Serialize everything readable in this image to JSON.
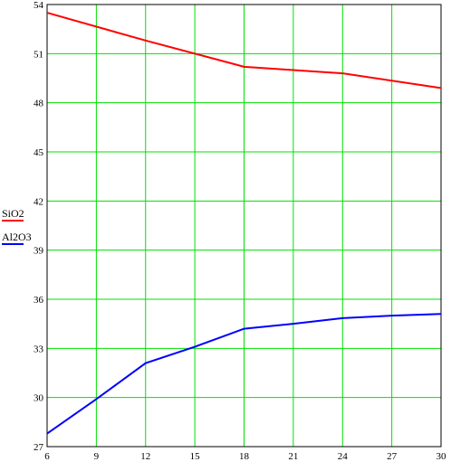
{
  "chart_data": {
    "type": "line",
    "title": "",
    "xlabel": "",
    "ylabel": "",
    "x": [
      6,
      9,
      12,
      15,
      18,
      21,
      24,
      27,
      30
    ],
    "xlim": [
      6,
      30
    ],
    "ylim": [
      27,
      54
    ],
    "x_ticks": [
      "6",
      "9",
      "12",
      "15",
      "18",
      "21",
      "24",
      "27",
      "30"
    ],
    "y_ticks": [
      "27",
      "30",
      "33",
      "36",
      "39",
      "42",
      "45",
      "48",
      "51",
      "54"
    ],
    "grid": true,
    "grid_color": "#00e000",
    "legend_position": "left",
    "series": [
      {
        "name": "SiO2",
        "color": "#ff0000",
        "points": [
          [
            6,
            53.5
          ],
          [
            12,
            51.8
          ],
          [
            18,
            50.2
          ],
          [
            24,
            49.8
          ],
          [
            30,
            48.9
          ]
        ]
      },
      {
        "name": "Al2O3",
        "color": "#0000ff",
        "points": [
          [
            6,
            27.8
          ],
          [
            9,
            29.9
          ],
          [
            12,
            32.1
          ],
          [
            15,
            33.1
          ],
          [
            18,
            34.2
          ],
          [
            21,
            34.5
          ],
          [
            24,
            34.85
          ],
          [
            27,
            35.0
          ],
          [
            30,
            35.1
          ]
        ]
      }
    ]
  }
}
